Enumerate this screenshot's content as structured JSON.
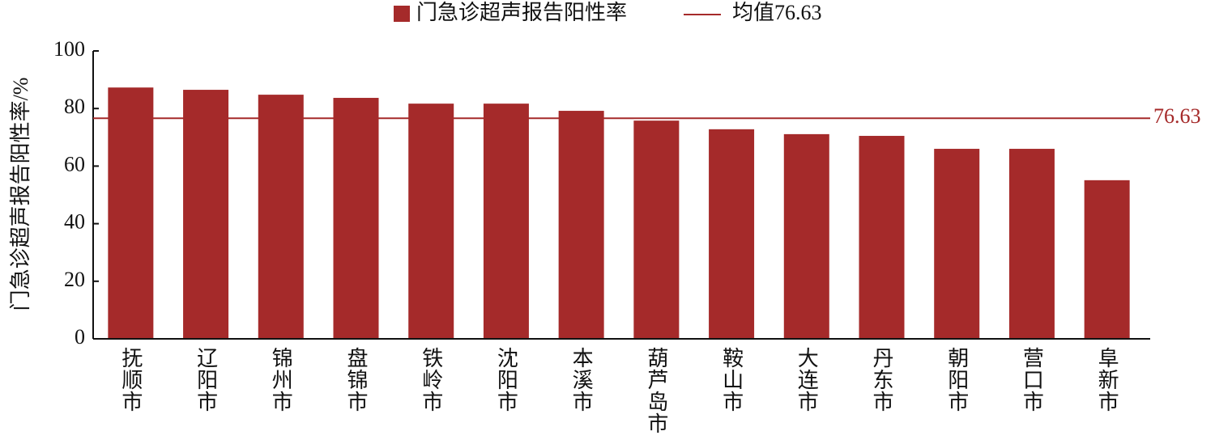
{
  "chart_data": {
    "type": "bar",
    "y_label": "门急诊超声报告阳性率/%",
    "categories": [
      "抚顺市",
      "辽阳市",
      "锦州市",
      "盘锦市",
      "铁岭市",
      "沈阳市",
      "本溪市",
      "葫芦岛市",
      "鞍山市",
      "大连市",
      "丹东市",
      "朝阳市",
      "营口市",
      "阜新市"
    ],
    "series": [
      {
        "name": "门急诊超声报告阳性率",
        "color": "#a52a2a",
        "values": [
          87.3,
          86.5,
          84.8,
          83.7,
          81.7,
          81.7,
          79.2,
          75.8,
          72.8,
          71.1,
          70.5,
          66.0,
          66.0,
          55.1
        ]
      }
    ],
    "mean_line": {
      "name": "均值76.63",
      "value": 76.63,
      "color": "#a52a2a"
    },
    "ylim": [
      0,
      100
    ],
    "yticks": [
      0,
      20,
      40,
      60,
      80,
      100
    ],
    "legend": "top"
  }
}
